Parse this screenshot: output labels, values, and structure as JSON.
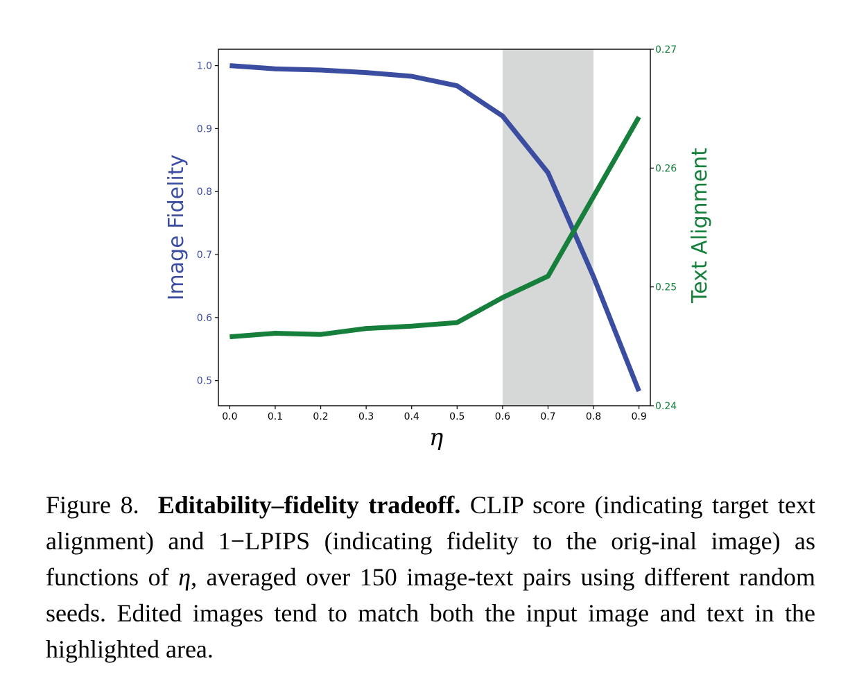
{
  "chart_data": {
    "type": "line",
    "x": [
      0.0,
      0.1,
      0.2,
      0.3,
      0.4,
      0.5,
      0.6,
      0.7,
      0.8,
      0.9
    ],
    "x_tick_labels": [
      "0.0",
      "0.1",
      "0.2",
      "0.3",
      "0.4",
      "0.5",
      "0.6",
      "0.7",
      "0.8",
      "0.9"
    ],
    "xlabel": "η",
    "ylabel_left": "Image Fidelity",
    "ylabel_right": "Text Alignment",
    "ylim_left": [
      0.46,
      1.026
    ],
    "ylim_right": [
      0.24,
      0.27
    ],
    "y_ticks_left": [
      "0.5",
      "0.6",
      "0.7",
      "0.8",
      "0.9",
      "1.0"
    ],
    "y_ticks_right": [
      "0.24",
      "0.25",
      "0.26",
      "0.27"
    ],
    "highlight_range": [
      0.6,
      0.8
    ],
    "series": [
      {
        "axis": "left",
        "color": "#3b4da0",
        "values": [
          1.0,
          0.995,
          0.993,
          0.989,
          0.983,
          0.968,
          0.92,
          0.83,
          0.665,
          0.483
        ]
      },
      {
        "axis": "right",
        "color": "#157f3b",
        "values": [
          0.2458,
          0.2461,
          0.246,
          0.2465,
          0.2467,
          0.247,
          0.2491,
          0.2509,
          0.2576,
          0.2643
        ]
      }
    ],
    "colors": {
      "left_axis": "#3b4da0",
      "right_axis": "#157f3b",
      "highlight": "#d6d8d8"
    },
    "grid": false,
    "legend": "none"
  },
  "caption": {
    "label": "Figure 8.",
    "bold": "Editability–fidelity tradeoff.",
    "part1": "CLIP score (indicating target text alignment) and 1−LPIPS (indicating fidelity to the orig-inal image) as functions of ",
    "eta": "η",
    "part2": ", averaged over 150 image-text pairs using different random seeds. Edited images tend to match both the input image and text in the highlighted area."
  }
}
